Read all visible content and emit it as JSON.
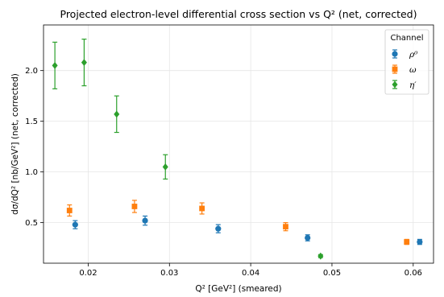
{
  "chart_data": {
    "type": "scatter",
    "title": "Projected electron-level differential cross section vs Q² (net, corrected)",
    "xlabel": "Q² [GeV²] (smeared)",
    "ylabel": "dσ/dQ² [nb/GeV²] (net, corrected)",
    "xlim": [
      0.0145,
      0.0625
    ],
    "ylim": [
      0.1,
      2.45
    ],
    "xticks": [
      0.02,
      0.03,
      0.04,
      0.05,
      0.06
    ],
    "xtick_labels": [
      "0.02",
      "0.03",
      "0.04",
      "0.05",
      "0.06"
    ],
    "yticks": [
      0.5,
      1.0,
      1.5,
      2.0
    ],
    "ytick_labels": [
      "0.5",
      "1.0",
      "1.5",
      "2.0"
    ],
    "grid": true,
    "legend": {
      "title": "Channel",
      "placement": "top-right"
    },
    "series": [
      {
        "name": "ρ⁰",
        "color": "#1f77b4",
        "marker": "circle",
        "points": [
          {
            "x": 0.0184,
            "y": 0.48,
            "err": 0.04
          },
          {
            "x": 0.027,
            "y": 0.52,
            "err": 0.045
          },
          {
            "x": 0.036,
            "y": 0.44,
            "err": 0.04
          },
          {
            "x": 0.047,
            "y": 0.35,
            "err": 0.03
          },
          {
            "x": 0.0608,
            "y": 0.31,
            "err": 0.025
          }
        ]
      },
      {
        "name": "ω",
        "color": "#ff7f0e",
        "marker": "square",
        "points": [
          {
            "x": 0.0177,
            "y": 0.62,
            "err": 0.055
          },
          {
            "x": 0.0257,
            "y": 0.66,
            "err": 0.06
          },
          {
            "x": 0.034,
            "y": 0.64,
            "err": 0.055
          },
          {
            "x": 0.0443,
            "y": 0.46,
            "err": 0.04
          },
          {
            "x": 0.0592,
            "y": 0.31,
            "err": 0.025
          }
        ]
      },
      {
        "name": "η′",
        "color": "#2ca02c",
        "marker": "diamond",
        "points": [
          {
            "x": 0.0159,
            "y": 2.05,
            "err": 0.23
          },
          {
            "x": 0.0195,
            "y": 2.08,
            "err": 0.23
          },
          {
            "x": 0.0235,
            "y": 1.57,
            "err": 0.18
          },
          {
            "x": 0.0295,
            "y": 1.05,
            "err": 0.12
          },
          {
            "x": 0.0486,
            "y": 0.17,
            "err": 0.015
          }
        ]
      }
    ]
  }
}
